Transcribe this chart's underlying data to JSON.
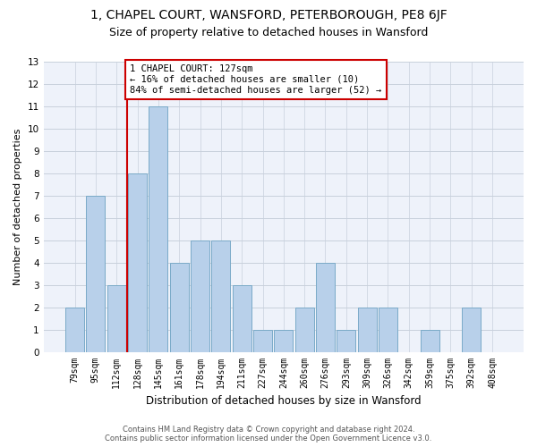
{
  "title_line1": "1, CHAPEL COURT, WANSFORD, PETERBOROUGH, PE8 6JF",
  "title_line2": "Size of property relative to detached houses in Wansford",
  "xlabel": "Distribution of detached houses by size in Wansford",
  "ylabel": "Number of detached properties",
  "categories": [
    "79sqm",
    "95sqm",
    "112sqm",
    "128sqm",
    "145sqm",
    "161sqm",
    "178sqm",
    "194sqm",
    "211sqm",
    "227sqm",
    "244sqm",
    "260sqm",
    "276sqm",
    "293sqm",
    "309sqm",
    "326sqm",
    "342sqm",
    "359sqm",
    "375sqm",
    "392sqm",
    "408sqm"
  ],
  "values": [
    2,
    7,
    3,
    8,
    11,
    4,
    5,
    5,
    3,
    1,
    1,
    2,
    4,
    1,
    2,
    2,
    0,
    1,
    0,
    2,
    0
  ],
  "bar_color": "#b8d0ea",
  "bar_edge_color": "#7aaac8",
  "property_line_x": 2.5,
  "annotation_text": "1 CHAPEL COURT: 127sqm\n← 16% of detached houses are smaller (10)\n84% of semi-detached houses are larger (52) →",
  "annotation_box_color": "white",
  "annotation_box_edge_color": "#cc0000",
  "vline_color": "#cc0000",
  "ylim": [
    0,
    13
  ],
  "yticks": [
    0,
    1,
    2,
    3,
    4,
    5,
    6,
    7,
    8,
    9,
    10,
    11,
    12,
    13
  ],
  "grid_color": "#c8d0dc",
  "background_color": "#eef2fa",
  "footer_text": "Contains HM Land Registry data © Crown copyright and database right 2024.\nContains public sector information licensed under the Open Government Licence v3.0.",
  "title_fontsize": 10,
  "subtitle_fontsize": 9,
  "tick_fontsize": 7,
  "ylabel_fontsize": 8,
  "xlabel_fontsize": 8.5,
  "annotation_fontsize": 7.5,
  "footer_fontsize": 6
}
